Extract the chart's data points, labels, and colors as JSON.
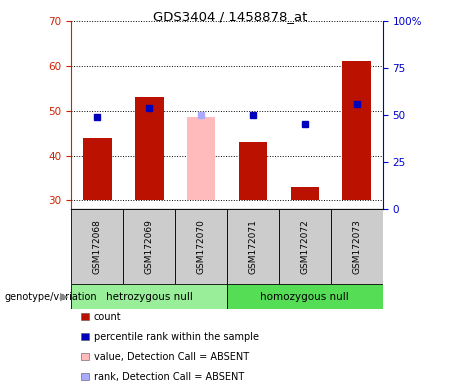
{
  "title": "GDS3404 / 1458878_at",
  "samples": [
    "GSM172068",
    "GSM172069",
    "GSM172070",
    "GSM172071",
    "GSM172072",
    "GSM172073"
  ],
  "bar_values": [
    44.0,
    53.0,
    null,
    43.0,
    33.0,
    61.0
  ],
  "bar_absent_values": [
    null,
    null,
    48.5,
    null,
    null,
    null
  ],
  "percentile_values": [
    48.5,
    50.5,
    null,
    49.0,
    47.0,
    51.5
  ],
  "percentile_absent_values": [
    null,
    null,
    49.0,
    null,
    null,
    null
  ],
  "ylim_left": [
    28,
    70
  ],
  "ylim_right": [
    0,
    100
  ],
  "yticks_left": [
    30,
    40,
    50,
    60,
    70
  ],
  "yticks_right": [
    0,
    25,
    50,
    75,
    100
  ],
  "bar_color": "#bb1100",
  "bar_absent_color": "#ffbbbb",
  "percentile_color": "#0000bb",
  "percentile_absent_color": "#aaaaff",
  "bar_width": 0.55,
  "groups": [
    {
      "label": "hetrozygous null",
      "start": 0,
      "end": 3,
      "color": "#99ee99"
    },
    {
      "label": "homozygous null",
      "start": 3,
      "end": 6,
      "color": "#55dd55"
    }
  ],
  "group_label_prefix": "genotype/variation",
  "legend_items": [
    {
      "label": "count",
      "color": "#bb1100"
    },
    {
      "label": "percentile rank within the sample",
      "color": "#0000bb"
    },
    {
      "label": "value, Detection Call = ABSENT",
      "color": "#ffbbbb"
    },
    {
      "label": "rank, Detection Call = ABSENT",
      "color": "#aaaaff"
    }
  ],
  "grid_color": "black",
  "left_axis_color": "#cc2200",
  "right_axis_color": "#0000cc",
  "sample_area_color": "#cccccc",
  "base_value": 30
}
